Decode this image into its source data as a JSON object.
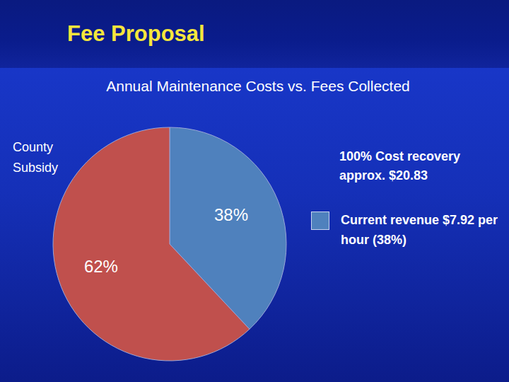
{
  "chart_data": {
    "type": "pie",
    "title": "Fee Proposal",
    "subtitle": "Annual Maintenance Costs vs. Fees Collected",
    "categories": [
      "Current revenue $7.92 per hour (38%)",
      "County Subsidy"
    ],
    "values": [
      38,
      62
    ],
    "value_labels": [
      "38%",
      "62%"
    ],
    "colors": [
      "#4f81bd",
      "#c0504d"
    ],
    "data_labels": true,
    "legend": "right",
    "annotations": [
      "100% Cost recovery approx. $20.83"
    ]
  }
}
